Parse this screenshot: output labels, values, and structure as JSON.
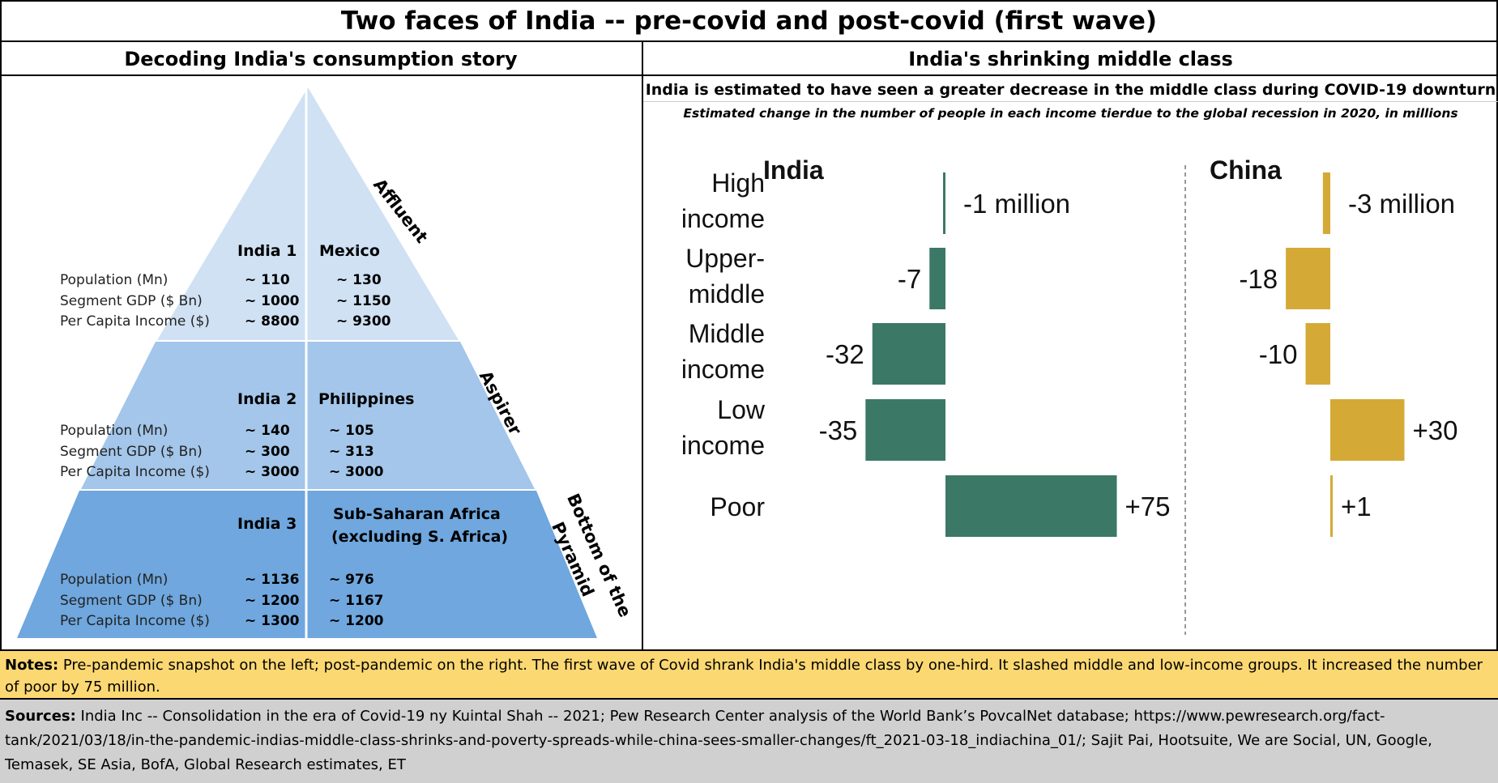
{
  "main_title": "Two faces of India -- pre-covid and post-covid (first wave)",
  "left_panel": {
    "title": "Decoding India's consumption story",
    "colors": {
      "top": "#cfe1f3",
      "middle": "#a3c6ea",
      "bottom": "#6fa7de"
    },
    "tiers": [
      {
        "tier": "Affluent",
        "col1": "India 1",
        "col2": "Mexico",
        "col1_values": [
          "~ 110",
          "~ 1000",
          "~ 8800"
        ],
        "col2_values": [
          "~ 130",
          "~ 1150",
          "~ 9300"
        ]
      },
      {
        "tier": "Aspirer",
        "col1": "India 2",
        "col2": "Philippines",
        "col1_values": [
          "~ 140",
          "~ 300",
          "~ 3000"
        ],
        "col2_values": [
          "~ 105",
          "~ 313",
          "~ 3000"
        ]
      },
      {
        "tier_line1": "Bottom of the",
        "tier_line2": "Pyramid",
        "col1": "India 3",
        "col2_line1": "Sub-Saharan Africa",
        "col2_line2": "(excluding S. Africa)",
        "col1_values": [
          "~ 1136",
          "~ 1200",
          "~ 1300"
        ],
        "col2_values": [
          "~ 976",
          "~ 1167",
          "~ 1200"
        ]
      }
    ],
    "row_labels": [
      "Population (Mn)",
      "Segment GDP ($ Bn)",
      "Per Capita Income ($)"
    ]
  },
  "right_panel": {
    "title": "India's shrinking middle class",
    "subtitle": "India is estimated to have seen a greater decrease in the middle class during COVID-19 downturn",
    "caption": "Estimated change in the number of people in each income tierdue to the global recession  in 2020, in millions"
  },
  "chart_data": {
    "type": "bar",
    "orientation": "horizontal",
    "categories": [
      {
        "line1": "High",
        "line2": "income"
      },
      {
        "line1": "Upper-",
        "line2": "middle"
      },
      {
        "line1": "Middle",
        "line2": "income"
      },
      {
        "line1": "Low",
        "line2": "income"
      },
      {
        "line1": "Poor",
        "line2": ""
      }
    ],
    "series": [
      {
        "name": "India",
        "color": "#3b7866",
        "values": [
          -1,
          -7,
          -32,
          -35,
          75
        ],
        "labels": [
          "-1 million",
          "-7",
          "-32",
          "-35",
          "+75"
        ]
      },
      {
        "name": "China",
        "color": "#d4a936",
        "values": [
          -3,
          -18,
          -10,
          30,
          1
        ],
        "labels": [
          "-3 million",
          "-18",
          "-10",
          "+30",
          "+1"
        ]
      }
    ]
  },
  "notes": {
    "label": "Notes:",
    "text": " Pre-pandemic snapshot on the left; post-pandemic on the right.  The first wave of Covid shrank India's middle class by one-hird.  It slashed middle and low-income groups.  It increased the number of poor by 75 million."
  },
  "sources": {
    "label": "Sources:",
    "text": " India Inc -- Consolidation in the era of Covid-19 ny Kuintal Shah -- 2021; Pew Research Center analysis of the World Bank’s PovcalNet database; https://www.pewresearch.org/fact-tank/2021/03/18/in-the-pandemic-indias-middle-class-shrinks-and-poverty-spreads-while-china-sees-smaller-changes/ft_2021-03-18_indiachina_01/; Sajit Pai, Hootsuite, We are Social, UN, Google, Temasek, SE Asia, BofA, Global Research estimates, ET"
  }
}
